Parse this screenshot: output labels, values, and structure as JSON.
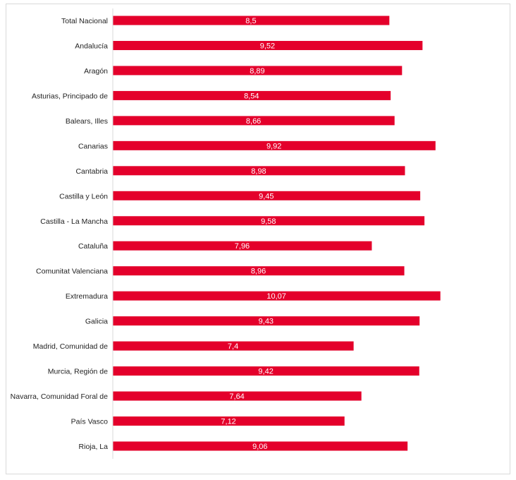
{
  "chart_data": {
    "type": "bar",
    "orientation": "horizontal",
    "categories": [
      "Total Nacional",
      "Andalucía",
      "Aragón",
      "Asturias, Principado de",
      "Balears, Illes",
      "Canarias",
      "Cantabria",
      "Castilla y León",
      "Castilla - La Mancha",
      "Cataluña",
      "Comunitat Valenciana",
      "Extremadura",
      "Galicia",
      "Madrid, Comunidad de",
      "Murcia, Región de",
      "Navarra, Comunidad Foral de",
      "País Vasco",
      "Rioja, La"
    ],
    "values": [
      8.5,
      9.52,
      8.89,
      8.54,
      8.66,
      9.92,
      8.98,
      9.45,
      9.58,
      7.96,
      8.96,
      10.07,
      9.43,
      7.4,
      9.42,
      7.64,
      7.12,
      9.06
    ],
    "value_labels": [
      "8,5",
      "9,52",
      "8,89",
      "8,54",
      "8,66",
      "9,92",
      "8,98",
      "9,45",
      "9,58",
      "7,96",
      "8,96",
      "10,07",
      "9,43",
      "7,4",
      "9,42",
      "7,64",
      "7,12",
      "9,06"
    ],
    "title": "",
    "xlabel": "",
    "ylabel": "",
    "xlim": [
      0,
      10.9
    ],
    "grid": false,
    "bar_color": "#e4002b"
  }
}
